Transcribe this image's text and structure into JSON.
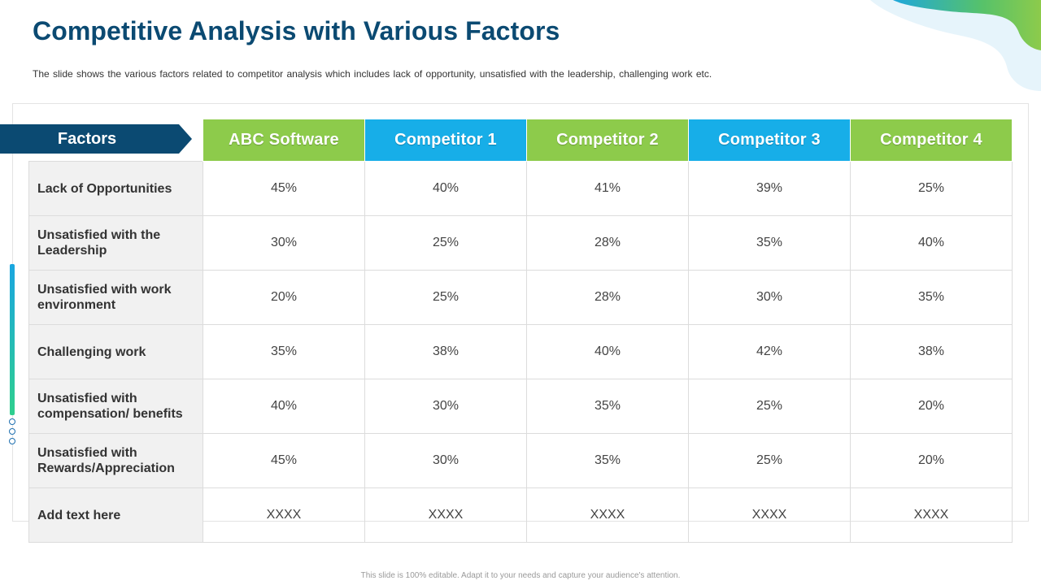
{
  "title": "Competitive Analysis with Various Factors",
  "subtitle": "The slide shows the various factors related to competitor analysis which includes lack of opportunity, unsatisfied with the leadership, challenging work etc.",
  "table": {
    "factors_label": "Factors",
    "columns": [
      "ABC Software",
      "Competitor 1",
      "Competitor 2",
      "Competitor 3",
      "Competitor 4"
    ],
    "column_colors": [
      "#8dcb4b",
      "#17aee8",
      "#8dcb4b",
      "#17aee8",
      "#8dcb4b"
    ],
    "rows": [
      {
        "factor": "Lack of Opportunities",
        "values": [
          "45%",
          "40%",
          "41%",
          "39%",
          "25%"
        ]
      },
      {
        "factor": "Unsatisfied with the Leadership",
        "values": [
          "30%",
          "25%",
          "28%",
          "35%",
          "40%"
        ]
      },
      {
        "factor": "Unsatisfied with work environment",
        "values": [
          "20%",
          "25%",
          "28%",
          "30%",
          "35%"
        ]
      },
      {
        "factor": "Challenging work",
        "values": [
          "35%",
          "38%",
          "40%",
          "42%",
          "38%"
        ]
      },
      {
        "factor": "Unsatisfied with compensation/ benefits",
        "values": [
          "40%",
          "30%",
          "35%",
          "25%",
          "20%"
        ]
      },
      {
        "factor": "Unsatisfied with Rewards/Appreciation",
        "values": [
          "45%",
          "30%",
          "35%",
          "25%",
          "20%"
        ]
      },
      {
        "factor": "Add text here",
        "values": [
          "XXXX",
          "XXXX",
          "XXXX",
          "XXXX",
          "XXXX"
        ]
      }
    ]
  },
  "footer": "This slide is 100% editable. Adapt it to your needs and capture your audience's attention.",
  "colors": {
    "title": "#0b4a72",
    "factors_tab": "#0b4a72",
    "green": "#8dcb4b",
    "blue": "#17aee8"
  }
}
